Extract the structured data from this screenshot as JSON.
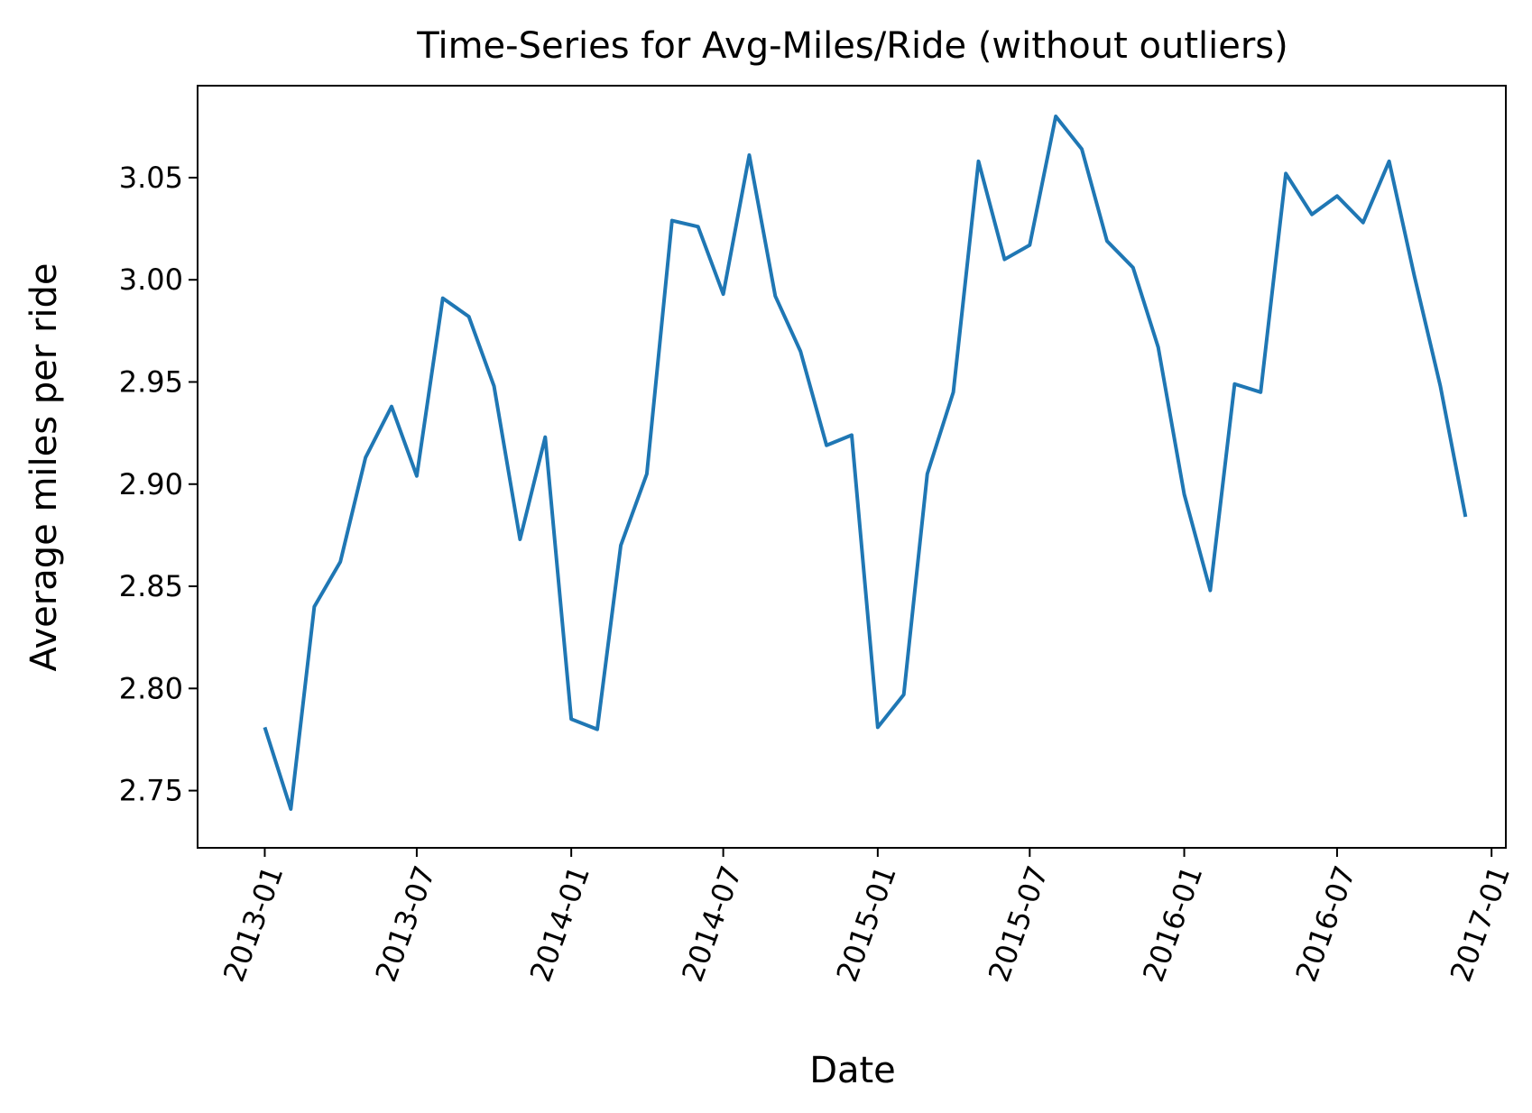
{
  "chart_data": {
    "type": "line",
    "title": "Time-Series for Avg-Miles/Ride (without outliers)",
    "xlabel": "Date",
    "ylabel": "Average miles per ride",
    "x_axis_type": "date",
    "xlim": [
      "2012-10-13",
      "2017-01-18"
    ],
    "ylim": [
      2.722,
      3.095
    ],
    "grid": false,
    "legend": "none",
    "x_ticks": [
      "2013-01",
      "2013-07",
      "2014-01",
      "2014-07",
      "2015-01",
      "2015-07",
      "2016-01",
      "2016-07",
      "2017-01"
    ],
    "x_tick_dates": [
      "2013-01-01",
      "2013-07-01",
      "2014-01-01",
      "2014-07-01",
      "2015-01-01",
      "2015-07-01",
      "2016-01-01",
      "2016-07-01",
      "2017-01-01"
    ],
    "y_ticks": [
      "2.75",
      "2.80",
      "2.85",
      "2.90",
      "2.95",
      "3.00",
      "3.05"
    ],
    "y_tick_values": [
      2.75,
      2.8,
      2.85,
      2.9,
      2.95,
      3.0,
      3.05
    ],
    "series": [
      {
        "color": "#1f77b4",
        "x": [
          "2013-01-01",
          "2013-02-01",
          "2013-03-01",
          "2013-04-01",
          "2013-05-01",
          "2013-06-01",
          "2013-07-01",
          "2013-08-01",
          "2013-09-01",
          "2013-10-01",
          "2013-11-01",
          "2013-12-01",
          "2014-01-01",
          "2014-02-01",
          "2014-03-01",
          "2014-04-01",
          "2014-05-01",
          "2014-06-01",
          "2014-07-01",
          "2014-08-01",
          "2014-09-01",
          "2014-10-01",
          "2014-11-01",
          "2014-12-01",
          "2015-01-01",
          "2015-02-01",
          "2015-03-01",
          "2015-04-01",
          "2015-05-01",
          "2015-06-01",
          "2015-07-01",
          "2015-08-01",
          "2015-09-01",
          "2015-10-01",
          "2015-11-01",
          "2015-12-01",
          "2016-01-01",
          "2016-02-01",
          "2016-03-01",
          "2016-04-01",
          "2016-05-01",
          "2016-06-01",
          "2016-07-01",
          "2016-08-01",
          "2016-09-01",
          "2016-10-01",
          "2016-11-01",
          "2016-12-01"
        ],
        "values": [
          2.781,
          2.741,
          2.84,
          2.862,
          2.913,
          2.938,
          2.904,
          2.991,
          2.982,
          2.948,
          2.873,
          2.923,
          2.785,
          2.78,
          2.87,
          2.905,
          3.029,
          3.026,
          2.993,
          3.061,
          2.992,
          2.965,
          2.919,
          2.924,
          2.781,
          2.797,
          2.905,
          2.945,
          3.058,
          3.01,
          3.017,
          3.08,
          3.064,
          3.019,
          3.006,
          2.967,
          2.895,
          2.848,
          2.949,
          2.945,
          3.052,
          3.032,
          3.041,
          3.028,
          3.058,
          3.002,
          2.948,
          2.884
        ]
      }
    ]
  }
}
